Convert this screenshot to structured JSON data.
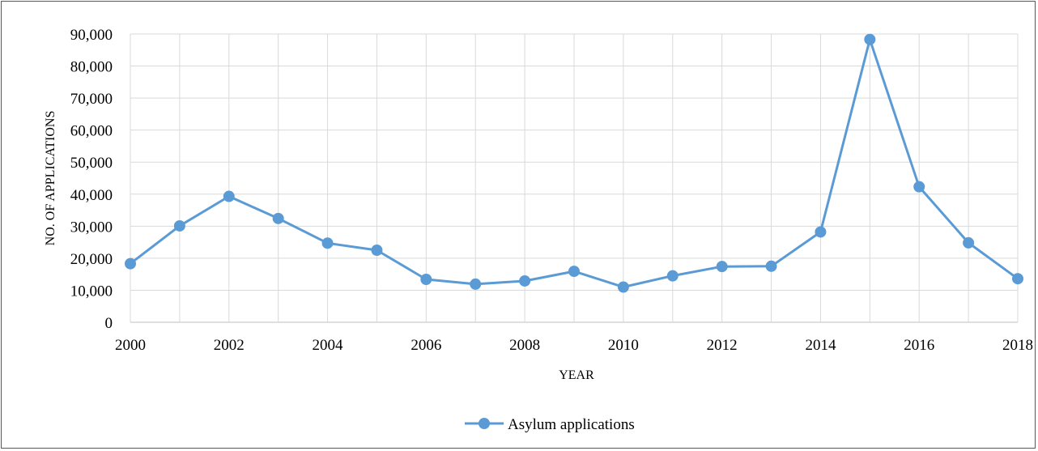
{
  "chart_data": {
    "type": "line",
    "title": "",
    "xlabel": "YEAR",
    "ylabel": "NO. OF APPLICATIONS",
    "ylim": [
      0,
      90000
    ],
    "yticks": [
      "0",
      "10,000",
      "20,000",
      "30,000",
      "40,000",
      "50,000",
      "60,000",
      "70,000",
      "80,000",
      "90,000"
    ],
    "x": [
      2000,
      2001,
      2002,
      2003,
      2004,
      2005,
      2006,
      2007,
      2008,
      2009,
      2010,
      2011,
      2012,
      2013,
      2014,
      2015,
      2016,
      2017,
      2018
    ],
    "xtick_labels": [
      "2000",
      "2002",
      "2004",
      "2006",
      "2008",
      "2010",
      "2012",
      "2014",
      "2016",
      "2018"
    ],
    "grid": true,
    "legend_position": "bottom",
    "series": [
      {
        "name": "Asylum applications",
        "color": "#5B9BD5",
        "values": [
          18300,
          30100,
          39300,
          32400,
          24700,
          22500,
          13400,
          11900,
          12900,
          15900,
          11000,
          14500,
          17400,
          17500,
          28200,
          88300,
          42300,
          24800,
          13600
        ]
      }
    ]
  }
}
